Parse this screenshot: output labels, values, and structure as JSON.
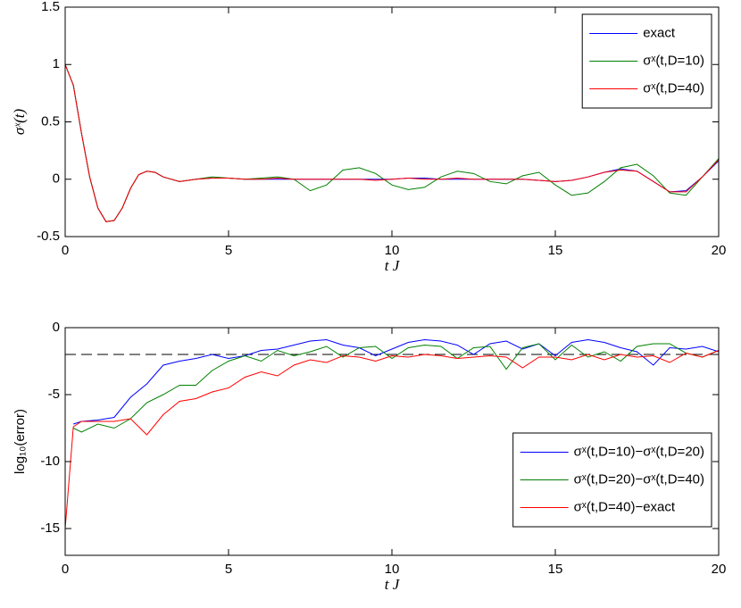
{
  "chart_data": [
    {
      "type": "line",
      "xlabel": "t J",
      "ylabel": "σˣ(t)",
      "xlim": [
        0,
        20
      ],
      "ylim": [
        -0.5,
        1.5
      ],
      "xticks": [
        0,
        5,
        10,
        15,
        20
      ],
      "yticks": [
        -0.5,
        0,
        0.5,
        1,
        1.5
      ],
      "legend": "upper right",
      "x": [
        0,
        0.25,
        0.5,
        0.75,
        1,
        1.25,
        1.5,
        1.75,
        2,
        2.25,
        2.5,
        2.75,
        3,
        3.5,
        4,
        4.5,
        5,
        5.5,
        6,
        6.5,
        7,
        7.5,
        8,
        8.5,
        9,
        9.5,
        10,
        10.5,
        11,
        11.5,
        12,
        12.5,
        13,
        13.5,
        14,
        14.5,
        15,
        15.5,
        16,
        16.5,
        17,
        17.5,
        18,
        18.5,
        19,
        19.5,
        20
      ],
      "series": [
        {
          "name": "exact",
          "color": "#0000ff",
          "values": [
            1,
            0.82,
            0.4,
            0.02,
            -0.25,
            -0.37,
            -0.36,
            -0.25,
            -0.08,
            0.04,
            0.07,
            0.06,
            0.02,
            -0.02,
            0,
            0.01,
            0.01,
            0,
            0,
            0,
            0,
            0,
            0,
            0,
            0,
            0,
            0,
            0.01,
            0.01,
            0,
            0,
            0,
            0,
            0,
            0,
            -0.01,
            -0.02,
            -0.01,
            0.02,
            0.06,
            0.09,
            0.07,
            -0.02,
            -0.11,
            -0.1,
            0.02,
            0.16
          ]
        },
        {
          "name": "σˣ(t,D=10)",
          "color": "#008000",
          "values": [
            1,
            0.82,
            0.4,
            0.02,
            -0.25,
            -0.37,
            -0.36,
            -0.25,
            -0.08,
            0.04,
            0.07,
            0.06,
            0.02,
            -0.02,
            0,
            0.02,
            0.01,
            0,
            0.01,
            0.02,
            0,
            -0.1,
            -0.05,
            0.08,
            0.1,
            0.05,
            -0.05,
            -0.09,
            -0.07,
            0.02,
            0.07,
            0.05,
            -0.02,
            -0.04,
            0.03,
            0.06,
            -0.05,
            -0.14,
            -0.12,
            -0.02,
            0.1,
            0.13,
            0.03,
            -0.12,
            -0.14,
            0.02,
            0.18
          ]
        },
        {
          "name": "σˣ(t,D=40)",
          "color": "#ff0000",
          "values": [
            1,
            0.82,
            0.4,
            0.02,
            -0.25,
            -0.37,
            -0.36,
            -0.25,
            -0.08,
            0.04,
            0.07,
            0.06,
            0.02,
            -0.02,
            0,
            0.01,
            0.01,
            0,
            0,
            0.01,
            0,
            0,
            0,
            0,
            0,
            -0.01,
            0,
            0.01,
            0,
            0,
            0.01,
            0,
            0,
            0,
            0,
            -0.01,
            -0.02,
            -0.01,
            0.02,
            0.06,
            0.08,
            0.07,
            -0.02,
            -0.11,
            -0.11,
            0.02,
            0.17
          ]
        }
      ]
    },
    {
      "type": "line",
      "xlabel": "t J",
      "ylabel": "log₁₀(error)",
      "xlim": [
        0,
        20
      ],
      "ylim": [
        -17,
        0
      ],
      "xticks": [
        0,
        5,
        10,
        15,
        20
      ],
      "yticks": [
        -15,
        -10,
        -5,
        0
      ],
      "legend": "lower right",
      "hline": -2,
      "x": [
        0,
        0.25,
        0.5,
        1,
        1.5,
        2,
        2.5,
        3,
        3.5,
        4,
        4.5,
        5,
        5.5,
        6,
        6.5,
        7,
        7.5,
        8,
        8.5,
        9,
        9.5,
        10,
        10.5,
        11,
        11.5,
        12,
        12.5,
        13,
        13.5,
        14,
        14.5,
        15,
        15.5,
        16,
        16.5,
        17,
        17.5,
        18,
        18.5,
        19,
        19.5,
        20
      ],
      "series": [
        {
          "name": "σˣ(t,D=10)−σˣ(t,D=20)",
          "color": "#0000ff",
          "values": [
            null,
            -7.2,
            -7,
            -6.9,
            -6.7,
            -5.2,
            -4.2,
            -2.8,
            -2.5,
            -2.3,
            -2,
            -2.3,
            -2.1,
            -1.7,
            -1.6,
            -1.3,
            -1,
            -0.9,
            -1.3,
            -1.5,
            -2.1,
            -1.6,
            -1.1,
            -0.9,
            -1,
            -1.3,
            -2,
            -1.2,
            -1,
            -1.6,
            -1.2,
            -2.1,
            -1.1,
            -0.9,
            -1.1,
            -1.5,
            -1.8,
            -2.8,
            -1.5,
            -1.6,
            -1.4,
            -1.8
          ]
        },
        {
          "name": "σˣ(t,D=20)−σˣ(t,D=40)",
          "color": "#008000",
          "values": [
            null,
            -7.5,
            -7.8,
            -7.2,
            -7.5,
            -6.8,
            -5.6,
            -5,
            -4.3,
            -4.3,
            -3.2,
            -2.5,
            -2.1,
            -2.5,
            -1.7,
            -2.1,
            -1.8,
            -1.4,
            -2.2,
            -1.5,
            -1.4,
            -2.3,
            -1.5,
            -1.3,
            -1.4,
            -2.3,
            -1.5,
            -1.4,
            -3.1,
            -1.5,
            -1.2,
            -2.4,
            -1.3,
            -2.2,
            -1.8,
            -2.5,
            -1.4,
            -1.2,
            -1.2,
            -1.9,
            -2.2,
            -1.7
          ]
        },
        {
          "name": "σˣ(t,D=40)−exact",
          "color": "#ff0000",
          "values": [
            -15,
            -7.4,
            -7,
            -7,
            -7,
            -6.8,
            -8,
            -6.5,
            -5.5,
            -5.3,
            -4.8,
            -4.5,
            -3.7,
            -3.3,
            -3.6,
            -2.8,
            -2.4,
            -2.6,
            -2.1,
            -2.2,
            -2.5,
            -2.1,
            -2.2,
            -2,
            -2.1,
            -2.3,
            -2.2,
            -2.1,
            -2.2,
            -3,
            -2.2,
            -2.2,
            -2.4,
            -2,
            -2.4,
            -2,
            -2.2,
            -2.1,
            -2.6,
            -1.9,
            -2.2,
            -1.7
          ]
        }
      ]
    }
  ]
}
